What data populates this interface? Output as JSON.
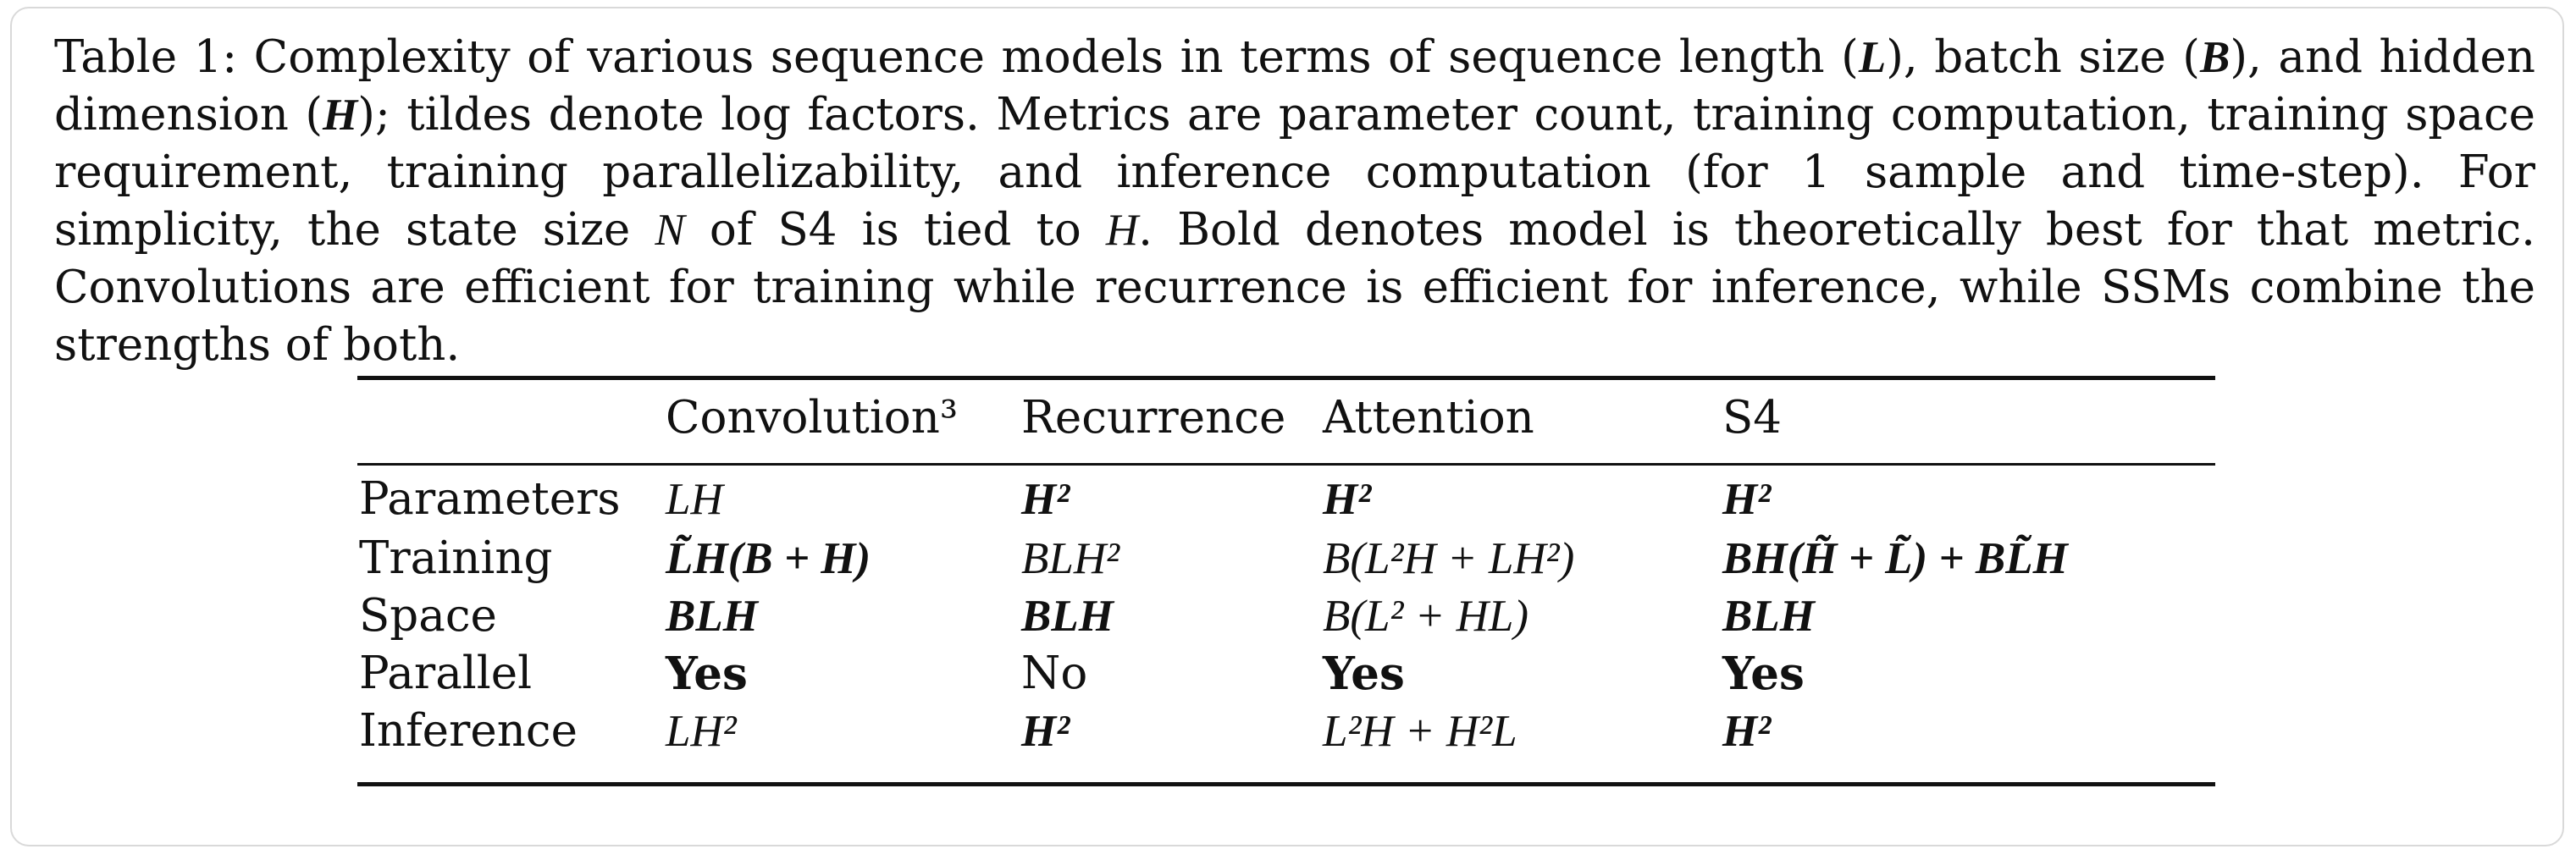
{
  "caption": {
    "label": "Table 1:",
    "seg1": "Complexity of various sequence models in terms of sequence length (",
    "sym_L": "L",
    "seg2": "), batch size (",
    "sym_B": "B",
    "seg3": "), and hidden dimension (",
    "sym_H": "H",
    "seg4": "); tildes denote log factors. Metrics are parameter count, training computation, training space requirement, training parallelizability, and inference computation (for 1 sample and time-step). For simplicity, the state size ",
    "sym_N": "N",
    "seg5": " of S4 is tied to ",
    "sym_H2": "H",
    "seg6": ". Bold denotes model is theoretically best for that metric. Convolutions are efficient for training while recurrence is efficient for inference, while SSMs combine the strengths of both."
  },
  "table": {
    "headers": [
      "",
      "Convolution³",
      "Recurrence",
      "Attention",
      "S4"
    ],
    "rows": [
      {
        "label": "Parameters",
        "cells": [
          "LH",
          "H²",
          "H²",
          "H²"
        ]
      },
      {
        "label": "Training",
        "cells": [
          "L̃H(B + H)",
          "BLH²",
          "B(L²H + LH²)",
          "BH(H̃ + L̃) + BL̃H"
        ]
      },
      {
        "label": "Space",
        "cells": [
          "BLH",
          "BLH",
          "B(L² + HL)",
          "BLH"
        ]
      },
      {
        "label": "Parallel",
        "cells": [
          "Yes",
          "No",
          "Yes",
          "Yes"
        ]
      },
      {
        "label": "Inference",
        "cells": [
          "LH²",
          "H²",
          "L²H + H²L",
          "H²"
        ]
      }
    ]
  }
}
